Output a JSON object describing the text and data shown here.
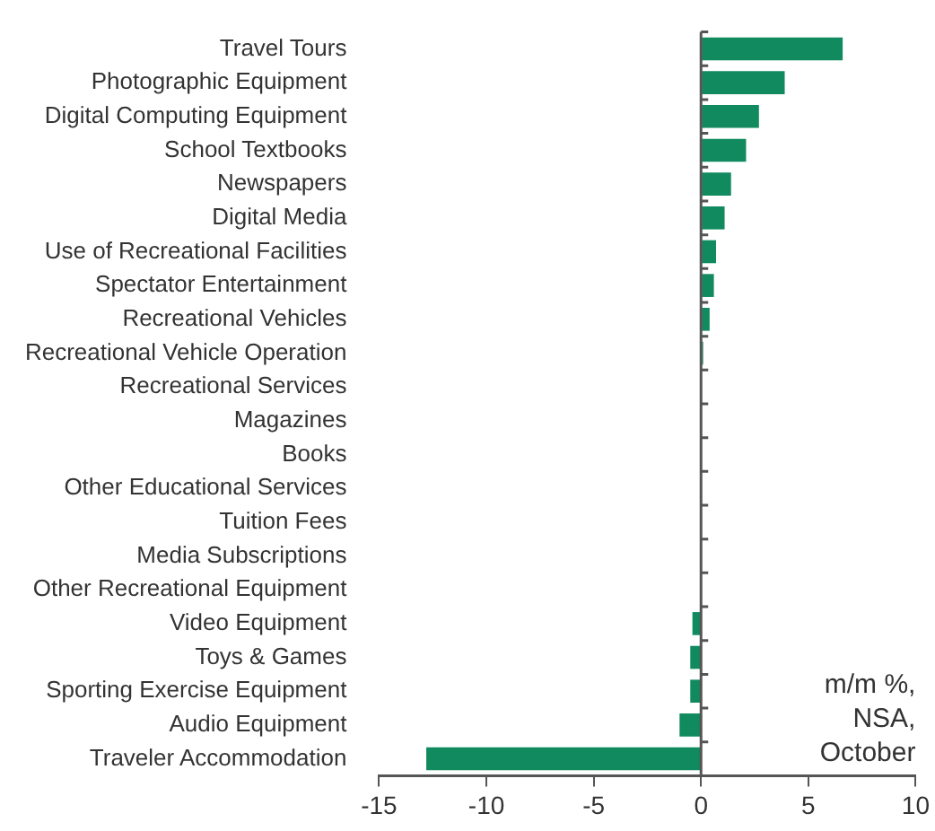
{
  "chart_data": {
    "type": "bar",
    "orientation": "horizontal",
    "categories": [
      "Travel Tours",
      "Photographic Equipment",
      "Digital Computing Equipment",
      "School Textbooks",
      "Newspapers",
      "Digital Media",
      "Use of Recreational Facilities",
      "Spectator Entertainment",
      "Recreational Vehicles",
      "Recreational Vehicle Operation",
      "Recreational Services",
      "Magazines",
      "Books",
      "Other Educational Services",
      "Tuition Fees",
      "Media Subscriptions",
      "Other Recreational Equipment",
      "Video Equipment",
      "Toys & Games",
      "Sporting Exercise Equipment",
      "Audio Equipment",
      "Traveler Accommodation"
    ],
    "values": [
      6.6,
      3.9,
      2.7,
      2.1,
      1.4,
      1.1,
      0.7,
      0.6,
      0.4,
      0.1,
      0,
      0,
      0,
      0,
      0,
      0,
      0,
      -0.4,
      -0.5,
      -0.5,
      -1.0,
      -12.8
    ],
    "color": "#108a5e",
    "xlim": [
      -15,
      10
    ],
    "xticks": [
      -15,
      -10,
      -5,
      0,
      5,
      10
    ],
    "legend": false,
    "annotations": [
      "m/m %,\nNSA,\nOctober"
    ]
  }
}
